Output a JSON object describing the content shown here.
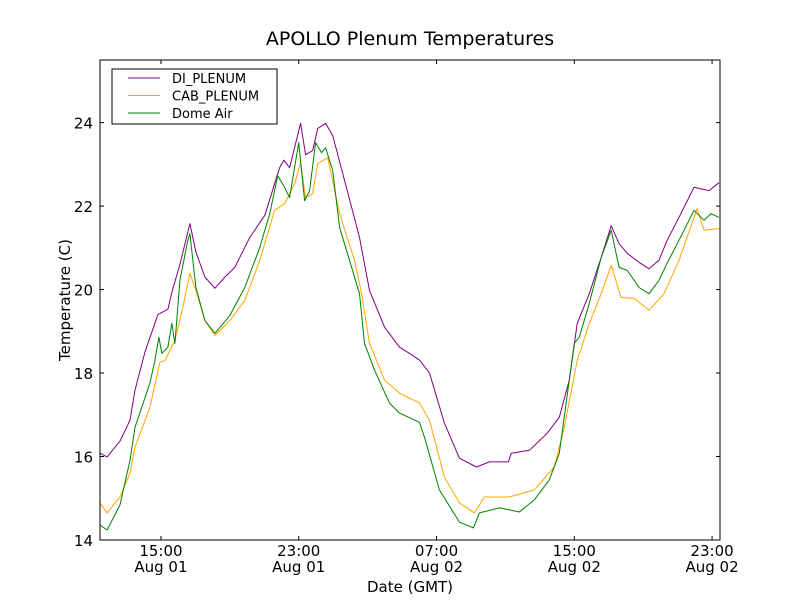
{
  "chart_data": {
    "type": "line",
    "title": "APOLLO Plenum Temperatures",
    "xlabel": "Date (GMT)",
    "ylabel": "Temperature (C)",
    "x_units": "hours since Aug 01 00:00 GMT",
    "xlim": [
      11.46,
      47.46
    ],
    "ylim": [
      14,
      25.5
    ],
    "grid": false,
    "legend_position": "top-left",
    "yticks": [
      14,
      16,
      18,
      20,
      22,
      24
    ],
    "ytick_labels": [
      "14",
      "16",
      "18",
      "20",
      "22",
      "24"
    ],
    "xticks": [
      15,
      23,
      31,
      39,
      47
    ],
    "xtick_labels": [
      [
        "15:00",
        "Aug 01"
      ],
      [
        "23:00",
        "Aug 01"
      ],
      [
        "07:00",
        "Aug 02"
      ],
      [
        "15:00",
        "Aug 02"
      ],
      [
        "23:00",
        "Aug 02"
      ]
    ],
    "series": [
      {
        "name": "DI_PLENUM",
        "color": "#800080",
        "points": [
          [
            11.46,
            16.08
          ],
          [
            11.87,
            15.99
          ],
          [
            12.62,
            16.37
          ],
          [
            13.2,
            16.87
          ],
          [
            13.49,
            17.59
          ],
          [
            14.07,
            18.5
          ],
          [
            14.82,
            19.4
          ],
          [
            15.4,
            19.53
          ],
          [
            15.63,
            19.93
          ],
          [
            16.1,
            20.6
          ],
          [
            16.68,
            21.58
          ],
          [
            17.03,
            20.9
          ],
          [
            17.55,
            20.3
          ],
          [
            18.13,
            20.03
          ],
          [
            18.71,
            20.3
          ],
          [
            19.29,
            20.53
          ],
          [
            20.16,
            21.25
          ],
          [
            21.03,
            21.78
          ],
          [
            21.89,
            22.92
          ],
          [
            22.13,
            23.1
          ],
          [
            22.47,
            22.92
          ],
          [
            23.11,
            23.98
          ],
          [
            23.4,
            23.23
          ],
          [
            23.81,
            23.33
          ],
          [
            24.1,
            23.86
          ],
          [
            24.56,
            23.98
          ],
          [
            24.97,
            23.69
          ],
          [
            25.66,
            22.61
          ],
          [
            26.53,
            21.25
          ],
          [
            27.11,
            19.98
          ],
          [
            27.98,
            19.1
          ],
          [
            28.85,
            18.62
          ],
          [
            29.43,
            18.47
          ],
          [
            30.01,
            18.31
          ],
          [
            30.59,
            18.0
          ],
          [
            31.46,
            16.8
          ],
          [
            32.33,
            15.96
          ],
          [
            33.32,
            15.75
          ],
          [
            34.07,
            15.87
          ],
          [
            35.17,
            15.87
          ],
          [
            35.34,
            16.08
          ],
          [
            36.39,
            16.15
          ],
          [
            37.43,
            16.56
          ],
          [
            38.13,
            16.94
          ],
          [
            38.71,
            17.83
          ],
          [
            39.17,
            19.19
          ],
          [
            39.87,
            19.9
          ],
          [
            40.56,
            20.77
          ],
          [
            41.14,
            21.53
          ],
          [
            41.6,
            21.1
          ],
          [
            42.07,
            20.87
          ],
          [
            42.76,
            20.65
          ],
          [
            43.34,
            20.5
          ],
          [
            43.92,
            20.7
          ],
          [
            44.39,
            21.18
          ],
          [
            45.08,
            21.73
          ],
          [
            45.95,
            22.45
          ],
          [
            46.82,
            22.37
          ],
          [
            47.4,
            22.56
          ]
        ]
      },
      {
        "name": "CAB_PLENUM",
        "color": "#ffa500",
        "points": [
          [
            11.46,
            14.89
          ],
          [
            11.87,
            14.65
          ],
          [
            12.62,
            15.03
          ],
          [
            13.2,
            15.6
          ],
          [
            13.49,
            16.22
          ],
          [
            14.36,
            17.18
          ],
          [
            14.94,
            18.26
          ],
          [
            15.23,
            18.3
          ],
          [
            15.81,
            18.78
          ],
          [
            16.27,
            19.57
          ],
          [
            16.68,
            20.39
          ],
          [
            17.03,
            19.98
          ],
          [
            17.55,
            19.26
          ],
          [
            18.13,
            18.9
          ],
          [
            19.0,
            19.26
          ],
          [
            19.87,
            19.74
          ],
          [
            20.74,
            20.7
          ],
          [
            21.6,
            21.9
          ],
          [
            22.18,
            22.06
          ],
          [
            22.76,
            22.54
          ],
          [
            23.11,
            23.04
          ],
          [
            23.4,
            22.2
          ],
          [
            23.81,
            22.3
          ],
          [
            24.1,
            23.02
          ],
          [
            24.68,
            23.16
          ],
          [
            25.37,
            21.82
          ],
          [
            26.24,
            20.7
          ],
          [
            26.65,
            19.9
          ],
          [
            27.11,
            18.71
          ],
          [
            27.98,
            17.83
          ],
          [
            28.85,
            17.52
          ],
          [
            30.01,
            17.28
          ],
          [
            30.59,
            16.87
          ],
          [
            31.46,
            15.51
          ],
          [
            32.33,
            14.89
          ],
          [
            33.2,
            14.65
          ],
          [
            33.78,
            15.03
          ],
          [
            35.23,
            15.03
          ],
          [
            36.68,
            15.2
          ],
          [
            37.84,
            15.75
          ],
          [
            38.42,
            16.7
          ],
          [
            39.17,
            18.3
          ],
          [
            39.87,
            19.19
          ],
          [
            40.56,
            19.9
          ],
          [
            41.14,
            20.58
          ],
          [
            41.72,
            19.81
          ],
          [
            42.47,
            19.79
          ],
          [
            43.34,
            19.5
          ],
          [
            44.21,
            19.9
          ],
          [
            45.08,
            20.7
          ],
          [
            46.13,
            21.94
          ],
          [
            46.53,
            21.42
          ],
          [
            47.4,
            21.46
          ]
        ]
      },
      {
        "name": "Dome Air",
        "color": "#008000",
        "points": [
          [
            11.46,
            14.36
          ],
          [
            11.87,
            14.24
          ],
          [
            12.62,
            14.84
          ],
          [
            13.2,
            15.91
          ],
          [
            13.49,
            16.7
          ],
          [
            14.36,
            17.76
          ],
          [
            14.65,
            18.3
          ],
          [
            14.88,
            18.86
          ],
          [
            15.05,
            18.47
          ],
          [
            15.4,
            18.62
          ],
          [
            15.63,
            19.19
          ],
          [
            15.81,
            18.71
          ],
          [
            16.1,
            20.22
          ],
          [
            16.56,
            21.18
          ],
          [
            16.68,
            21.34
          ],
          [
            17.03,
            20.05
          ],
          [
            17.55,
            19.26
          ],
          [
            18.13,
            18.95
          ],
          [
            19.0,
            19.38
          ],
          [
            19.87,
            20.05
          ],
          [
            20.74,
            21.01
          ],
          [
            21.32,
            21.82
          ],
          [
            21.78,
            22.73
          ],
          [
            22.18,
            22.45
          ],
          [
            22.47,
            22.2
          ],
          [
            23.0,
            23.52
          ],
          [
            23.34,
            22.13
          ],
          [
            23.63,
            22.37
          ],
          [
            23.98,
            23.52
          ],
          [
            24.33,
            23.28
          ],
          [
            24.56,
            23.4
          ],
          [
            24.97,
            22.85
          ],
          [
            25.37,
            21.49
          ],
          [
            25.95,
            20.7
          ],
          [
            26.53,
            19.9
          ],
          [
            26.82,
            18.71
          ],
          [
            27.4,
            18.07
          ],
          [
            28.27,
            17.28
          ],
          [
            28.85,
            17.04
          ],
          [
            30.01,
            16.82
          ],
          [
            30.3,
            16.46
          ],
          [
            31.17,
            15.2
          ],
          [
            32.33,
            14.43
          ],
          [
            33.14,
            14.29
          ],
          [
            33.49,
            14.65
          ],
          [
            34.65,
            14.77
          ],
          [
            35.81,
            14.67
          ],
          [
            36.68,
            14.96
          ],
          [
            37.55,
            15.44
          ],
          [
            38.13,
            16.08
          ],
          [
            39.0,
            18.71
          ],
          [
            39.29,
            18.86
          ],
          [
            39.87,
            19.67
          ],
          [
            40.56,
            20.77
          ],
          [
            41.14,
            21.42
          ],
          [
            41.6,
            20.53
          ],
          [
            42.07,
            20.46
          ],
          [
            42.76,
            20.05
          ],
          [
            43.34,
            19.9
          ],
          [
            43.92,
            20.22
          ],
          [
            44.39,
            20.63
          ],
          [
            45.08,
            21.18
          ],
          [
            45.95,
            21.9
          ],
          [
            46.53,
            21.66
          ],
          [
            46.94,
            21.82
          ],
          [
            47.4,
            21.73
          ]
        ]
      }
    ]
  }
}
